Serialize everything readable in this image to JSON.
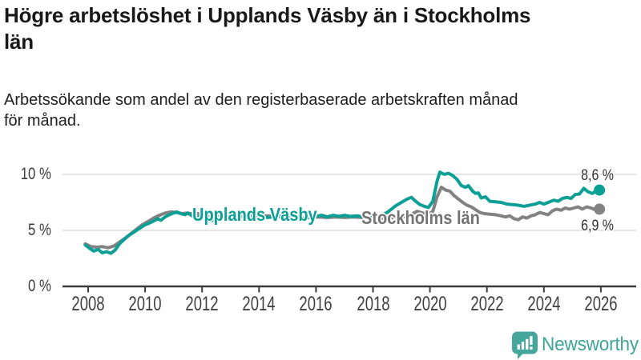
{
  "title": {
    "text": "Högre arbetslöshet i Upplands Väsby än i Stockholms län",
    "lines": [
      "Högre arbetslöshet i Upplands Väsby än i Stockholms",
      "län"
    ]
  },
  "subtitle": {
    "text": "Arbetssökande som andel av den registerbaserade arbetskraften månad för månad.",
    "lines": [
      "Arbetssökande som andel av den registerbaserade arbetskraften månad",
      "för månad."
    ]
  },
  "branding": {
    "wordmark": "Newsworthy",
    "icon": "newsworthy-speech-bubble-bar-chart-icon",
    "icon_color": "#45a69c",
    "wordmark_color": "#3ea59b"
  },
  "chart_data": {
    "type": "line",
    "title": "Högre arbetslöshet i Upplands Väsby än i Stockholms län",
    "subtitle": "Arbetssökande som andel av den registerbaserade arbetskraften månad för månad.",
    "unit": "percent",
    "grid": "horizontal",
    "x_axis": {
      "label": "",
      "tick_years": [
        2008,
        2010,
        2012,
        2014,
        2016,
        2018,
        2020,
        2022,
        2024,
        2026
      ],
      "range": [
        2007.9,
        2027.2
      ]
    },
    "y_axis": {
      "label": "",
      "tick_labels": [
        "0 %",
        "5 %",
        "10 %"
      ],
      "tick_values": [
        0,
        5,
        10
      ],
      "range": [
        0,
        11.4
      ]
    },
    "colors": {
      "accent_teal": "#0b9f96",
      "neutral_gray": "#828282",
      "gridline": "#d8d8d8",
      "axis": "#3b3b3b"
    },
    "series": [
      {
        "name": "Upplands Väsby",
        "color": "#0b9f96",
        "end_label": "8,6 %",
        "end_value": 8.6,
        "points": [
          [
            2007.9,
            3.7
          ],
          [
            2008.05,
            3.4
          ],
          [
            2008.2,
            3.15
          ],
          [
            2008.35,
            3.3
          ],
          [
            2008.5,
            3.0
          ],
          [
            2008.65,
            3.1
          ],
          [
            2008.8,
            2.95
          ],
          [
            2008.95,
            3.25
          ],
          [
            2009.1,
            3.8
          ],
          [
            2009.25,
            4.15
          ],
          [
            2009.4,
            4.5
          ],
          [
            2009.55,
            4.75
          ],
          [
            2009.7,
            5.0
          ],
          [
            2009.85,
            5.25
          ],
          [
            2010.0,
            5.5
          ],
          [
            2010.15,
            5.65
          ],
          [
            2010.3,
            5.85
          ],
          [
            2010.45,
            6.05
          ],
          [
            2010.55,
            5.9
          ],
          [
            2010.7,
            6.2
          ],
          [
            2010.85,
            6.4
          ],
          [
            2011.0,
            6.55
          ],
          [
            2011.1,
            6.65
          ],
          [
            2011.25,
            6.5
          ],
          [
            2011.4,
            6.4
          ],
          [
            2011.5,
            6.55
          ],
          [
            2011.65,
            6.3
          ],
          [
            2011.8,
            6.1
          ],
          [
            2011.95,
            6.3
          ],
          [
            2012.1,
            6.05
          ],
          [
            2012.3,
            5.85
          ],
          [
            2012.5,
            6.0
          ],
          [
            2012.75,
            6.15
          ],
          [
            2013.0,
            6.25
          ],
          [
            2013.25,
            6.3
          ],
          [
            2013.5,
            6.2
          ],
          [
            2013.75,
            6.3
          ],
          [
            2014.0,
            6.25
          ],
          [
            2014.3,
            6.15
          ],
          [
            2014.6,
            6.25
          ],
          [
            2014.9,
            6.3
          ],
          [
            2015.2,
            6.2
          ],
          [
            2015.5,
            6.1
          ],
          [
            2015.8,
            6.15
          ],
          [
            2016.0,
            6.25
          ],
          [
            2016.2,
            6.35
          ],
          [
            2016.4,
            6.2
          ],
          [
            2016.6,
            6.35
          ],
          [
            2016.8,
            6.25
          ],
          [
            2017.0,
            6.35
          ],
          [
            2017.2,
            6.25
          ],
          [
            2017.45,
            6.3
          ],
          [
            2017.7,
            6.2
          ],
          [
            2017.95,
            6.15
          ],
          [
            2018.2,
            6.25
          ],
          [
            2018.5,
            6.6
          ],
          [
            2018.8,
            7.2
          ],
          [
            2019.0,
            7.5
          ],
          [
            2019.2,
            7.8
          ],
          [
            2019.35,
            7.95
          ],
          [
            2019.5,
            7.6
          ],
          [
            2019.65,
            7.3
          ],
          [
            2019.8,
            7.15
          ],
          [
            2019.95,
            7.05
          ],
          [
            2020.1,
            7.6
          ],
          [
            2020.25,
            9.4
          ],
          [
            2020.35,
            10.2
          ],
          [
            2020.5,
            10.0
          ],
          [
            2020.65,
            10.1
          ],
          [
            2020.8,
            9.9
          ],
          [
            2020.95,
            9.55
          ],
          [
            2021.1,
            9.0
          ],
          [
            2021.25,
            8.85
          ],
          [
            2021.35,
            9.0
          ],
          [
            2021.5,
            8.5
          ],
          [
            2021.6,
            8.3
          ],
          [
            2021.7,
            8.35
          ],
          [
            2021.8,
            7.9
          ],
          [
            2021.95,
            8.0
          ],
          [
            2022.1,
            7.6
          ],
          [
            2022.3,
            7.55
          ],
          [
            2022.5,
            7.5
          ],
          [
            2022.7,
            7.35
          ],
          [
            2022.9,
            7.3
          ],
          [
            2023.1,
            7.25
          ],
          [
            2023.3,
            7.15
          ],
          [
            2023.5,
            7.25
          ],
          [
            2023.7,
            7.35
          ],
          [
            2023.85,
            7.5
          ],
          [
            2024.0,
            7.35
          ],
          [
            2024.2,
            7.55
          ],
          [
            2024.35,
            7.7
          ],
          [
            2024.5,
            7.6
          ],
          [
            2024.65,
            7.85
          ],
          [
            2024.8,
            7.95
          ],
          [
            2024.95,
            7.85
          ],
          [
            2025.1,
            8.2
          ],
          [
            2025.25,
            8.25
          ],
          [
            2025.4,
            8.75
          ],
          [
            2025.55,
            8.45
          ],
          [
            2025.7,
            8.3
          ],
          [
            2025.85,
            8.55
          ],
          [
            2025.95,
            8.6
          ]
        ]
      },
      {
        "name": "Stockholms län",
        "color": "#828282",
        "end_label": "6,9 %",
        "end_value": 6.9,
        "points": [
          [
            2007.9,
            3.8
          ],
          [
            2008.1,
            3.55
          ],
          [
            2008.3,
            3.5
          ],
          [
            2008.5,
            3.55
          ],
          [
            2008.7,
            3.45
          ],
          [
            2008.9,
            3.6
          ],
          [
            2009.1,
            3.95
          ],
          [
            2009.3,
            4.3
          ],
          [
            2009.5,
            4.7
          ],
          [
            2009.7,
            5.1
          ],
          [
            2009.9,
            5.5
          ],
          [
            2010.1,
            5.8
          ],
          [
            2010.3,
            6.1
          ],
          [
            2010.5,
            6.35
          ],
          [
            2010.7,
            6.55
          ],
          [
            2010.9,
            6.65
          ],
          [
            2011.1,
            6.6
          ],
          [
            2011.3,
            6.5
          ],
          [
            2011.5,
            6.55
          ],
          [
            2011.7,
            6.45
          ],
          [
            2011.9,
            6.5
          ],
          [
            2012.1,
            6.3
          ],
          [
            2012.3,
            6.2
          ],
          [
            2012.55,
            6.25
          ],
          [
            2012.8,
            6.35
          ],
          [
            2013.1,
            6.3
          ],
          [
            2013.4,
            6.25
          ],
          [
            2013.7,
            6.3
          ],
          [
            2014.0,
            6.25
          ],
          [
            2014.3,
            6.3
          ],
          [
            2014.6,
            6.25
          ],
          [
            2014.9,
            6.2
          ],
          [
            2015.2,
            6.15
          ],
          [
            2015.5,
            6.1
          ],
          [
            2015.8,
            6.15
          ],
          [
            2016.1,
            6.2
          ],
          [
            2016.4,
            6.15
          ],
          [
            2016.7,
            6.2
          ],
          [
            2017.0,
            6.15
          ],
          [
            2017.3,
            6.2
          ],
          [
            2017.6,
            6.15
          ],
          [
            2017.9,
            6.1
          ],
          [
            2018.2,
            6.05
          ],
          [
            2018.5,
            6.1
          ],
          [
            2018.8,
            6.15
          ],
          [
            2019.1,
            6.25
          ],
          [
            2019.35,
            6.45
          ],
          [
            2019.55,
            6.7
          ],
          [
            2019.75,
            6.55
          ],
          [
            2019.95,
            6.45
          ],
          [
            2020.1,
            6.7
          ],
          [
            2020.25,
            8.0
          ],
          [
            2020.4,
            8.85
          ],
          [
            2020.55,
            8.6
          ],
          [
            2020.7,
            8.5
          ],
          [
            2020.85,
            8.1
          ],
          [
            2021.0,
            7.8
          ],
          [
            2021.15,
            7.5
          ],
          [
            2021.3,
            7.25
          ],
          [
            2021.45,
            7.1
          ],
          [
            2021.6,
            6.85
          ],
          [
            2021.75,
            6.6
          ],
          [
            2021.9,
            6.5
          ],
          [
            2022.1,
            6.45
          ],
          [
            2022.3,
            6.4
          ],
          [
            2022.5,
            6.3
          ],
          [
            2022.65,
            6.2
          ],
          [
            2022.8,
            6.3
          ],
          [
            2022.95,
            6.05
          ],
          [
            2023.1,
            5.95
          ],
          [
            2023.25,
            6.2
          ],
          [
            2023.4,
            6.1
          ],
          [
            2023.55,
            6.3
          ],
          [
            2023.7,
            6.4
          ],
          [
            2023.85,
            6.6
          ],
          [
            2024.0,
            6.5
          ],
          [
            2024.15,
            6.4
          ],
          [
            2024.3,
            6.75
          ],
          [
            2024.45,
            6.9
          ],
          [
            2024.6,
            6.8
          ],
          [
            2024.75,
            7.0
          ],
          [
            2024.9,
            6.9
          ],
          [
            2025.05,
            7.0
          ],
          [
            2025.2,
            7.1
          ],
          [
            2025.35,
            6.9
          ],
          [
            2025.5,
            7.1
          ],
          [
            2025.65,
            7.0
          ],
          [
            2025.8,
            6.85
          ],
          [
            2025.95,
            6.9
          ]
        ]
      }
    ]
  }
}
